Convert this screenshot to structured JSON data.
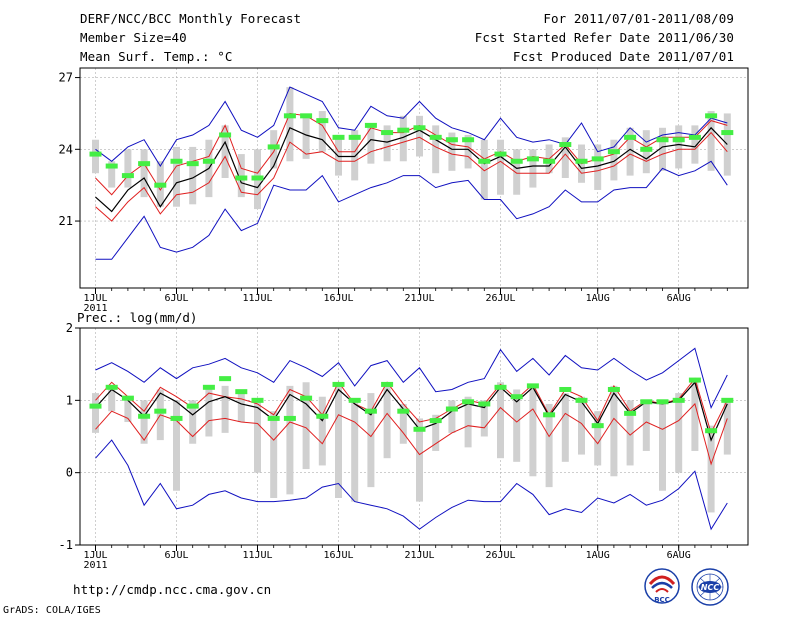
{
  "header": {
    "left": [
      "DERF/NCC/BCC Monthly Forecast",
      "Member Size=40",
      "Mean Surf. Temp.: °C"
    ],
    "right": [
      "For 2011/07/01-2011/08/09",
      "Fcst Started Refer Date 2011/06/30",
      "Fcst Produced Date 2011/07/01"
    ]
  },
  "footer": {
    "url": "http://cmdp.ncc.cma.gov.cn",
    "grads": "GrADS: COLA/IGES",
    "logo_left": "BCC",
    "logo_right": "NCC"
  },
  "colors": {
    "ensemble_mean": "#000000",
    "spread": "#e02020",
    "extremes": "#1010c0",
    "member_bar": "#d0d0d0",
    "marker": "#44ee44"
  },
  "chart_data": [
    {
      "type": "line",
      "title": "Mean Surf. Temp.: °C",
      "x_tick_labels": [
        "1JUL",
        "6JUL",
        "11JUL",
        "16JUL",
        "21JUL",
        "26JUL",
        "1AUG",
        "6AUG"
      ],
      "x_tick_days": [
        1,
        6,
        11,
        16,
        21,
        26,
        32,
        37
      ],
      "year_label": "2011",
      "ylim": [
        18.2,
        27.4
      ],
      "yticks": [
        21,
        24,
        27
      ],
      "days": [
        1,
        2,
        3,
        4,
        5,
        6,
        7,
        8,
        9,
        10,
        11,
        12,
        13,
        14,
        15,
        16,
        17,
        18,
        19,
        20,
        21,
        22,
        23,
        24,
        25,
        26,
        27,
        28,
        29,
        30,
        31,
        32,
        33,
        34,
        35,
        36,
        37,
        38,
        39,
        40
      ],
      "series": [
        {
          "name": "max",
          "values": [
            24.0,
            23.5,
            24.1,
            24.4,
            23.3,
            24.4,
            24.6,
            25.0,
            26.0,
            24.8,
            24.5,
            25.0,
            26.6,
            26.3,
            26.0,
            24.9,
            24.8,
            25.8,
            25.4,
            25.3,
            26.0,
            25.3,
            24.9,
            24.7,
            24.4,
            25.3,
            24.5,
            24.3,
            24.4,
            24.2,
            25.1,
            23.9,
            24.1,
            24.9,
            24.3,
            24.6,
            24.7,
            24.6,
            25.3,
            25.1
          ]
        },
        {
          "name": "upper",
          "values": [
            22.8,
            22.1,
            22.9,
            23.4,
            22.3,
            23.3,
            23.5,
            23.7,
            25.0,
            23.2,
            23.0,
            23.9,
            25.5,
            25.4,
            25.0,
            23.9,
            23.9,
            24.9,
            24.7,
            24.7,
            25.0,
            24.6,
            24.2,
            24.1,
            23.6,
            23.9,
            23.5,
            23.7,
            23.6,
            24.2,
            23.4,
            23.6,
            23.8,
            24.5,
            24.1,
            24.5,
            24.5,
            24.5,
            25.2,
            25.0
          ]
        },
        {
          "name": "mean",
          "values": [
            22.0,
            21.4,
            22.3,
            22.8,
            21.6,
            22.6,
            22.8,
            23.2,
            24.3,
            22.6,
            22.4,
            23.3,
            24.9,
            24.6,
            24.4,
            23.7,
            23.7,
            24.4,
            24.3,
            24.5,
            24.8,
            24.4,
            24.0,
            24.0,
            23.4,
            23.7,
            23.2,
            23.3,
            23.3,
            24.1,
            23.2,
            23.3,
            23.5,
            24.0,
            23.6,
            24.1,
            24.2,
            24.1,
            24.9,
            24.2
          ]
        },
        {
          "name": "lower",
          "values": [
            21.6,
            21.0,
            21.8,
            22.4,
            21.3,
            22.1,
            22.2,
            22.6,
            23.7,
            22.2,
            22.1,
            22.8,
            24.3,
            23.8,
            23.9,
            23.5,
            23.5,
            23.9,
            24.1,
            24.3,
            24.5,
            24.1,
            23.8,
            23.7,
            23.1,
            23.5,
            23.0,
            23.0,
            23.0,
            23.8,
            23.0,
            23.1,
            23.3,
            23.8,
            23.5,
            23.8,
            24.0,
            24.0,
            24.7,
            23.9
          ]
        },
        {
          "name": "min",
          "values": [
            19.4,
            19.4,
            20.3,
            21.2,
            19.9,
            19.7,
            19.9,
            20.4,
            21.5,
            20.6,
            20.9,
            22.5,
            22.3,
            22.3,
            22.9,
            21.8,
            22.1,
            22.4,
            22.6,
            22.9,
            22.9,
            22.4,
            22.6,
            22.7,
            21.9,
            21.9,
            21.1,
            21.3,
            21.6,
            22.3,
            21.8,
            21.8,
            22.3,
            22.4,
            22.4,
            23.2,
            22.9,
            23.1,
            23.5,
            22.5
          ]
        }
      ],
      "bars": {
        "low": [
          23.0,
          22.4,
          22.4,
          22.0,
          21.6,
          21.6,
          21.7,
          22.0,
          22.8,
          22.0,
          21.5,
          23.2,
          23.5,
          23.6,
          23.9,
          22.9,
          22.7,
          23.4,
          23.5,
          23.5,
          23.7,
          23.0,
          23.1,
          23.2,
          21.9,
          22.1,
          22.1,
          22.4,
          23.0,
          22.8,
          22.6,
          22.3,
          22.7,
          22.9,
          23.0,
          23.1,
          23.2,
          23.4,
          23.1,
          22.9
        ],
        "high": [
          24.4,
          23.5,
          24.0,
          24.0,
          23.5,
          24.1,
          24.1,
          24.4,
          25.0,
          23.8,
          24.0,
          24.8,
          26.6,
          25.4,
          25.6,
          24.6,
          24.8,
          24.9,
          25.0,
          25.4,
          25.4,
          25.0,
          24.7,
          24.6,
          24.4,
          24.4,
          24.0,
          24.0,
          24.2,
          24.5,
          24.2,
          24.2,
          24.4,
          24.9,
          24.8,
          24.9,
          25.0,
          25.0,
          25.6,
          25.5
        ]
      },
      "markers": [
        23.8,
        23.3,
        22.9,
        23.4,
        22.5,
        23.5,
        23.4,
        23.5,
        24.6,
        22.8,
        22.8,
        24.1,
        25.4,
        25.4,
        25.2,
        24.5,
        24.5,
        25.0,
        24.7,
        24.8,
        24.9,
        24.5,
        24.4,
        24.4,
        23.5,
        23.8,
        23.5,
        23.6,
        23.5,
        24.2,
        23.5,
        23.6,
        23.9,
        24.5,
        24.0,
        24.4,
        24.4,
        24.5,
        25.4,
        24.7
      ]
    },
    {
      "type": "line",
      "title": "Prec.: log(mm/d)",
      "x_tick_labels": [
        "1JUL",
        "6JUL",
        "11JUL",
        "16JUL",
        "21JUL",
        "26JUL",
        "1AUG",
        "6AUG"
      ],
      "x_tick_days": [
        1,
        6,
        11,
        16,
        21,
        26,
        32,
        37
      ],
      "year_label": "2011",
      "ylim": [
        -1,
        2
      ],
      "yticks": [
        -1,
        0,
        1,
        2
      ],
      "days": [
        1,
        2,
        3,
        4,
        5,
        6,
        7,
        8,
        9,
        10,
        11,
        12,
        13,
        14,
        15,
        16,
        17,
        18,
        19,
        20,
        21,
        22,
        23,
        24,
        25,
        26,
        27,
        28,
        29,
        30,
        31,
        32,
        33,
        34,
        35,
        36,
        37,
        38,
        39,
        40
      ],
      "series": [
        {
          "name": "max",
          "values": [
            1.42,
            1.52,
            1.4,
            1.25,
            1.45,
            1.3,
            1.45,
            1.5,
            1.58,
            1.45,
            1.38,
            1.25,
            1.55,
            1.45,
            1.33,
            1.52,
            1.2,
            1.48,
            1.55,
            1.25,
            1.45,
            1.12,
            1.15,
            1.25,
            1.3,
            1.7,
            1.4,
            1.58,
            1.35,
            1.62,
            1.45,
            1.42,
            1.58,
            1.42,
            1.28,
            1.38,
            1.55,
            1.72,
            0.9,
            1.35
          ]
        },
        {
          "name": "upper",
          "values": [
            1.0,
            1.25,
            1.05,
            0.85,
            1.18,
            1.05,
            0.9,
            1.1,
            1.05,
            1.02,
            0.95,
            0.8,
            1.15,
            1.05,
            0.8,
            1.25,
            0.95,
            0.85,
            1.25,
            0.95,
            0.7,
            0.75,
            0.88,
            1.0,
            0.95,
            1.22,
            1.02,
            1.22,
            0.8,
            1.15,
            1.05,
            0.72,
            1.2,
            0.85,
            1.0,
            0.95,
            1.02,
            1.3,
            0.55,
            1.0
          ]
        },
        {
          "name": "mean",
          "values": [
            0.9,
            1.15,
            1.0,
            0.78,
            1.1,
            0.98,
            0.8,
            0.98,
            1.05,
            0.95,
            0.9,
            0.73,
            1.08,
            0.95,
            0.72,
            1.15,
            0.95,
            0.8,
            1.15,
            0.88,
            0.6,
            0.68,
            0.85,
            0.95,
            0.9,
            1.18,
            0.98,
            1.18,
            0.78,
            1.08,
            0.98,
            0.68,
            1.1,
            0.82,
            0.98,
            0.95,
            1.0,
            1.25,
            0.45,
            0.95
          ]
        },
        {
          "name": "lower",
          "values": [
            0.6,
            0.85,
            0.75,
            0.45,
            0.8,
            0.72,
            0.5,
            0.72,
            0.75,
            0.7,
            0.68,
            0.45,
            0.7,
            0.62,
            0.4,
            0.8,
            0.7,
            0.5,
            0.82,
            0.55,
            0.25,
            0.4,
            0.55,
            0.65,
            0.62,
            0.9,
            0.7,
            0.88,
            0.5,
            0.82,
            0.68,
            0.4,
            0.75,
            0.52,
            0.7,
            0.6,
            0.72,
            0.95,
            0.12,
            0.75
          ]
        },
        {
          "name": "min",
          "values": [
            0.2,
            0.45,
            0.1,
            -0.45,
            -0.15,
            -0.5,
            -0.45,
            -0.3,
            -0.25,
            -0.35,
            -0.4,
            -0.4,
            -0.38,
            -0.35,
            -0.2,
            -0.15,
            -0.4,
            -0.45,
            -0.5,
            -0.6,
            -0.78,
            -0.62,
            -0.48,
            -0.38,
            -0.4,
            -0.4,
            -0.15,
            -0.3,
            -0.58,
            -0.5,
            -0.55,
            -0.35,
            -0.42,
            -0.3,
            -0.45,
            -0.38,
            -0.22,
            0.02,
            -0.78,
            -0.42
          ]
        }
      ],
      "bars": {
        "low": [
          0.55,
          0.85,
          0.7,
          0.4,
          0.45,
          -0.25,
          0.4,
          0.5,
          0.55,
          0.7,
          0.0,
          -0.35,
          -0.3,
          0.05,
          0.1,
          -0.35,
          -0.4,
          -0.2,
          0.2,
          0.4,
          -0.4,
          0.3,
          0.55,
          0.35,
          0.5,
          0.2,
          0.15,
          -0.05,
          -0.2,
          0.15,
          0.25,
          0.1,
          -0.05,
          0.1,
          0.3,
          -0.25,
          0.0,
          0.3,
          -0.55,
          0.25
        ],
        "high": [
          1.1,
          1.2,
          1.0,
          1.0,
          1.15,
          1.0,
          1.0,
          1.15,
          1.2,
          1.1,
          1.0,
          0.85,
          1.2,
          1.25,
          1.05,
          1.25,
          1.0,
          1.1,
          1.2,
          0.95,
          0.75,
          0.8,
          1.0,
          1.05,
          1.0,
          1.25,
          1.15,
          1.2,
          0.95,
          1.1,
          1.05,
          0.85,
          1.2,
          1.0,
          1.0,
          1.0,
          1.1,
          1.3,
          0.65,
          1.0
        ]
      },
      "markers": [
        0.92,
        1.18,
        1.03,
        0.78,
        0.85,
        0.75,
        0.92,
        1.18,
        1.3,
        1.12,
        1.0,
        0.75,
        0.75,
        1.03,
        0.78,
        1.22,
        1.0,
        0.85,
        1.22,
        0.85,
        0.6,
        0.72,
        0.88,
        0.98,
        0.95,
        1.18,
        1.05,
        1.2,
        0.8,
        1.15,
        1.0,
        0.65,
        1.15,
        0.82,
        0.98,
        0.98,
        1.0,
        1.28,
        0.58,
        1.0
      ]
    }
  ]
}
